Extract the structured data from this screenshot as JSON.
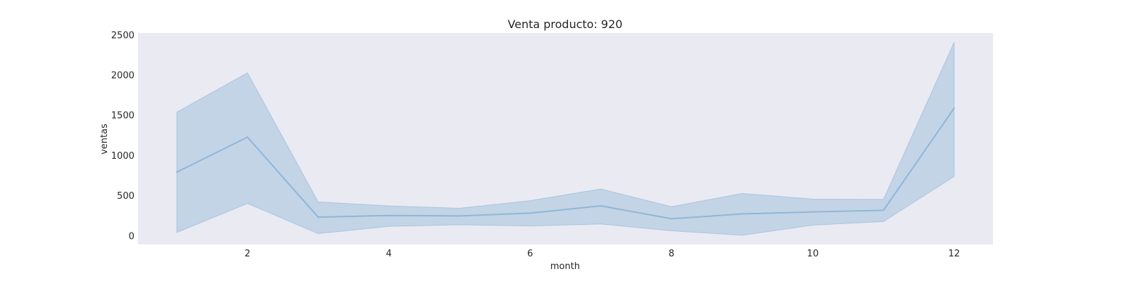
{
  "chart_data": {
    "type": "line",
    "title": "Venta producto: 920",
    "xlabel": "month",
    "ylabel": "ventas",
    "xlim": [
      0.45,
      12.55
    ],
    "ylim": [
      -110,
      2520
    ],
    "xticks": [
      2,
      4,
      6,
      8,
      10,
      12
    ],
    "yticks": [
      0,
      500,
      1000,
      1500,
      2000,
      2500
    ],
    "grid": false,
    "colors": {
      "background": "#eaeaf2",
      "line": "#8fb6d8",
      "band": "#aec7e0"
    },
    "series": [
      {
        "x": [
          1,
          2,
          3,
          4,
          5,
          6,
          7,
          8,
          9,
          10,
          11,
          12
        ],
        "y": [
          790,
          1225,
          230,
          250,
          245,
          280,
          370,
          210,
          270,
          295,
          315,
          1585
        ],
        "lower": [
          40,
          400,
          25,
          115,
          135,
          120,
          145,
          60,
          5,
          130,
          175,
          735
        ],
        "upper": [
          1535,
          2025,
          420,
          370,
          340,
          435,
          580,
          360,
          525,
          455,
          450,
          2405
        ]
      }
    ]
  }
}
